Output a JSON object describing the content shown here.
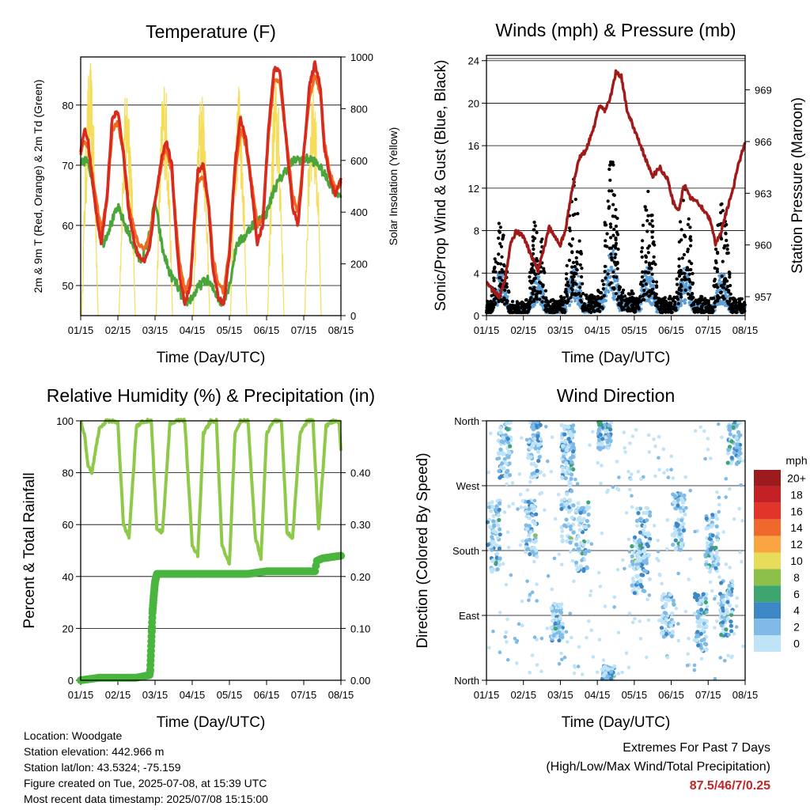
{
  "colors": {
    "temp2m": "#d82a1e",
    "temp9m": "#f26a21",
    "dewpoint": "#4aa63a",
    "insolation": "#f5dd5a",
    "wind": "#5b9fd6",
    "gust": "#000000",
    "pressure": "#a01a1a",
    "rh": "#8ec94a",
    "precip": "#4ab53e",
    "extremes": "#c0272d"
  },
  "chart_data": [
    {
      "id": "temperature",
      "type": "line",
      "title": "Temperature (F)",
      "xlabel": "Time (Day/UTC)",
      "ylabel": "2m & 9m T (Red, Orange) & 2m Td (Green)",
      "y2label": "Solar Insolation (Yellow)",
      "x_ticks": [
        "01/15",
        "02/15",
        "03/15",
        "04/15",
        "05/15",
        "06/15",
        "07/15",
        "08/15"
      ],
      "xlim": [
        0,
        7
      ],
      "ylim": [
        45,
        88
      ],
      "y_ticks": [
        50,
        60,
        70,
        80
      ],
      "y2lim": [
        0,
        1000
      ],
      "y2_ticks": [
        0,
        200,
        400,
        600,
        800,
        1000
      ],
      "grid": true,
      "series": [
        {
          "key": "temp2m",
          "color": "#d82a1e",
          "x": [
            0,
            0.1,
            0.2,
            0.3,
            0.4,
            0.55,
            0.7,
            0.85,
            1.0,
            1.15,
            1.3,
            1.45,
            1.55,
            1.7,
            1.85,
            2.0,
            2.2,
            2.3,
            2.45,
            2.55,
            2.65,
            2.8,
            2.95,
            3.05,
            3.15,
            3.3,
            3.45,
            3.55,
            3.7,
            3.85,
            4.0,
            4.15,
            4.3,
            4.45,
            4.6,
            4.75,
            4.9,
            5.05,
            5.2,
            5.35,
            5.5,
            5.7,
            5.85,
            6.0,
            6.15,
            6.3,
            6.45,
            6.55,
            6.7,
            6.85,
            7.0
          ],
          "y": [
            72,
            76,
            74,
            68,
            63,
            57,
            64,
            78,
            79,
            72,
            62,
            57,
            55,
            54,
            56,
            64,
            72,
            74,
            70,
            60,
            52,
            47,
            50,
            60,
            69,
            70,
            63,
            53,
            48,
            47,
            55,
            70,
            78,
            74,
            66,
            57,
            60,
            76,
            86,
            86,
            76,
            63,
            60,
            72,
            83,
            87,
            83,
            73,
            68,
            65,
            68
          ]
        },
        {
          "key": "temp9m",
          "color": "#f26a21",
          "x": [
            0,
            0.1,
            0.2,
            0.3,
            0.4,
            0.55,
            0.7,
            0.85,
            1.0,
            1.15,
            1.3,
            1.45,
            1.55,
            1.7,
            1.85,
            2.0,
            2.2,
            2.3,
            2.45,
            2.55,
            2.65,
            2.8,
            2.95,
            3.05,
            3.15,
            3.3,
            3.45,
            3.55,
            3.7,
            3.85,
            4.0,
            4.15,
            4.3,
            4.45,
            4.6,
            4.75,
            4.9,
            5.05,
            5.2,
            5.35,
            5.5,
            5.7,
            5.85,
            6.0,
            6.15,
            6.3,
            6.45,
            6.55,
            6.7,
            6.85,
            7.0
          ],
          "y": [
            72,
            74,
            73,
            69,
            65,
            59,
            64,
            76,
            77,
            72,
            63,
            59,
            57,
            56,
            58,
            64,
            71,
            73,
            69,
            61,
            54,
            49,
            51,
            60,
            67,
            68,
            63,
            55,
            50,
            49,
            56,
            69,
            76,
            73,
            67,
            60,
            61,
            75,
            84,
            84,
            76,
            65,
            62,
            72,
            81,
            85,
            82,
            74,
            69,
            66,
            67
          ]
        },
        {
          "key": "dewpoint",
          "color": "#4aa63a",
          "x": [
            0,
            0.15,
            0.3,
            0.45,
            0.6,
            0.8,
            1.0,
            1.2,
            1.4,
            1.6,
            1.8,
            2.0,
            2.2,
            2.4,
            2.6,
            2.8,
            3.0,
            3.2,
            3.4,
            3.6,
            3.8,
            4.0,
            4.2,
            4.4,
            4.6,
            4.8,
            5.0,
            5.2,
            5.4,
            5.6,
            5.8,
            6.0,
            6.2,
            6.4,
            6.6,
            6.8,
            7.0
          ],
          "y": [
            70,
            71,
            68,
            62,
            57,
            60,
            63,
            60,
            57,
            54,
            57,
            64,
            56,
            52,
            50,
            47,
            48,
            50,
            51,
            49,
            47,
            50,
            57,
            58,
            60,
            61,
            62,
            66,
            68,
            70,
            71,
            71,
            71,
            70,
            68,
            66,
            65
          ]
        }
      ],
      "insolation": {
        "days": [
          0.25,
          1.25,
          2.25,
          3.25,
          4.25,
          5.25,
          6.25
        ],
        "peaks": [
          990,
          930,
          950,
          900,
          960,
          940,
          960
        ]
      }
    },
    {
      "id": "winds",
      "type": "scatter",
      "title": "Winds (mph) & Pressure (mb)",
      "xlabel": "Time (Day/UTC)",
      "ylabel": "Sonic/Prop Wind & Gust (Blue, Black)",
      "y2label": "Station Pressure (Maroon)",
      "x_ticks": [
        "01/15",
        "02/15",
        "03/15",
        "04/15",
        "05/15",
        "06/15",
        "07/15",
        "08/15"
      ],
      "xlim": [
        0,
        7
      ],
      "ylim": [
        0,
        24.5
      ],
      "y_ticks": [
        0,
        4,
        8,
        12,
        16,
        20,
        24
      ],
      "y2lim": [
        955.9,
        971.0
      ],
      "y2_ticks": [
        957,
        960,
        963,
        966,
        969
      ],
      "grid": true,
      "pressure": {
        "x": [
          0,
          0.15,
          0.35,
          0.5,
          0.65,
          0.8,
          1.0,
          1.2,
          1.4,
          1.55,
          1.7,
          1.85,
          2.0,
          2.15,
          2.3,
          2.5,
          2.7,
          2.9,
          3.05,
          3.2,
          3.35,
          3.5,
          3.65,
          3.8,
          3.95,
          4.1,
          4.3,
          4.5,
          4.7,
          4.9,
          5.05,
          5.2,
          5.35,
          5.5,
          5.7,
          5.9,
          6.05,
          6.2,
          6.35,
          6.5,
          6.65,
          6.8,
          7.0
        ],
        "y": [
          957.8,
          957.4,
          957.0,
          958.0,
          960.0,
          960.8,
          960.5,
          959.4,
          958.5,
          959.8,
          961.0,
          960.5,
          960.0,
          961.0,
          963.0,
          965.0,
          965.5,
          966.8,
          968.0,
          967.8,
          968.5,
          970.0,
          969.8,
          967.8,
          967.0,
          966.2,
          965.0,
          964.0,
          964.5,
          963.8,
          962.5,
          962.0,
          963.5,
          962.8,
          962.5,
          962.0,
          961.5,
          960.0,
          960.8,
          962.0,
          963.0,
          964.5,
          966.0
        ]
      },
      "wind_envelope": {
        "days": [
          0,
          1,
          2,
          3,
          4,
          5,
          6
        ],
        "mean_peak": [
          3.5,
          3.2,
          4.0,
          5.5,
          4.0,
          3.8,
          3.5
        ],
        "gust_peak": [
          9,
          10,
          13,
          16,
          12,
          12,
          11
        ]
      }
    },
    {
      "id": "humidity",
      "type": "line",
      "title": "Relative Humidity (%) & Precipitation (in)",
      "xlabel": "Time (Day/UTC)",
      "ylabel": "Percent & Total Rainfall",
      "x_ticks": [
        "01/15",
        "02/15",
        "03/15",
        "04/15",
        "05/15",
        "06/15",
        "07/15",
        "08/15"
      ],
      "xlim": [
        0,
        7
      ],
      "ylim": [
        0,
        100
      ],
      "y_ticks": [
        0,
        20,
        40,
        60,
        80,
        100
      ],
      "y2lim": [
        0,
        0.5
      ],
      "y2_ticks": [
        "0.00",
        "0.10",
        "0.20",
        "0.30",
        "0.40"
      ],
      "grid": true,
      "series": [
        {
          "key": "rh",
          "color": "#8ec94a",
          "x": [
            0,
            0.1,
            0.2,
            0.3,
            0.5,
            0.7,
            0.85,
            1.0,
            1.15,
            1.3,
            1.5,
            1.7,
            1.9,
            2.05,
            2.2,
            2.4,
            2.6,
            2.8,
            3.0,
            3.15,
            3.3,
            3.5,
            3.65,
            3.8,
            4.0,
            4.15,
            4.3,
            4.5,
            4.7,
            4.85,
            5.0,
            5.2,
            5.4,
            5.55,
            5.7,
            5.9,
            6.1,
            6.25,
            6.4,
            6.6,
            6.8,
            6.95,
            7.0
          ],
          "y": [
            100,
            95,
            83,
            80,
            97,
            100,
            100,
            99,
            60,
            55,
            98,
            100,
            100,
            58,
            57,
            99,
            100,
            100,
            52,
            48,
            95,
            100,
            100,
            52,
            45,
            95,
            100,
            100,
            55,
            47,
            95,
            100,
            100,
            57,
            55,
            95,
            100,
            100,
            58,
            98,
            100,
            100,
            88
          ]
        },
        {
          "key": "precip",
          "color": "#4ab53e",
          "x": [
            0,
            0.5,
            1.0,
            1.5,
            1.85,
            1.87,
            1.9,
            1.93,
            1.96,
            2.0,
            2.05,
            2.5,
            3.0,
            3.5,
            4.0,
            4.5,
            5.0,
            5.5,
            6.0,
            6.3,
            6.35,
            6.5,
            7.0
          ],
          "y": [
            0,
            0.005,
            0.005,
            0.005,
            0.01,
            0.02,
            0.075,
            0.13,
            0.16,
            0.19,
            0.205,
            0.205,
            0.205,
            0.205,
            0.205,
            0.205,
            0.21,
            0.21,
            0.21,
            0.21,
            0.23,
            0.235,
            0.24
          ]
        }
      ]
    },
    {
      "id": "direction",
      "type": "scatter",
      "title": "Wind Direction",
      "xlabel": "Time (Day/UTC)",
      "ylabel": "Direction (Colored By Speed)",
      "x_ticks": [
        "01/15",
        "02/15",
        "03/15",
        "04/15",
        "05/15",
        "06/15",
        "07/15",
        "08/15"
      ],
      "xlim": [
        0,
        7
      ],
      "ylim": [
        0,
        360
      ],
      "y_ticks": [
        {
          "value": 0,
          "label": "North"
        },
        {
          "value": 90,
          "label": "East"
        },
        {
          "value": 180,
          "label": "South"
        },
        {
          "value": 270,
          "label": "West"
        },
        {
          "value": 360,
          "label": "North"
        }
      ],
      "grid": true,
      "legend": {
        "title": "mph",
        "placement": "right",
        "bins": [
          {
            "label": "20+",
            "color": "#9b1b1e"
          },
          {
            "label": "18",
            "color": "#c42127"
          },
          {
            "label": "16",
            "color": "#e3342a"
          },
          {
            "label": "14",
            "color": "#f0692c"
          },
          {
            "label": "12",
            "color": "#f9a541"
          },
          {
            "label": "10",
            "color": "#e8dd5a"
          },
          {
            "label": "8",
            "color": "#8cc04b"
          },
          {
            "label": "6",
            "color": "#3da66f"
          },
          {
            "label": "4",
            "color": "#3d87c6"
          },
          {
            "label": "2",
            "color": "#7fbbe6"
          },
          {
            "label": "0",
            "color": "#bfe3f7"
          }
        ]
      },
      "clusters": [
        {
          "day": 0.2,
          "dir": 200,
          "spread": 50
        },
        {
          "day": 0.5,
          "dir": 320,
          "spread": 40
        },
        {
          "day": 1.2,
          "dir": 210,
          "spread": 40
        },
        {
          "day": 1.3,
          "dir": 320,
          "spread": 40
        },
        {
          "day": 1.9,
          "dir": 80,
          "spread": 25
        },
        {
          "day": 2.2,
          "dir": 250,
          "spread": 60
        },
        {
          "day": 2.2,
          "dir": 330,
          "spread": 25
        },
        {
          "day": 2.6,
          "dir": 200,
          "spread": 50
        },
        {
          "day": 3.2,
          "dir": 340,
          "spread": 20
        },
        {
          "day": 3.3,
          "dir": 10,
          "spread": 10
        },
        {
          "day": 4.1,
          "dir": 160,
          "spread": 40
        },
        {
          "day": 4.25,
          "dir": 190,
          "spread": 50
        },
        {
          "day": 4.9,
          "dir": 90,
          "spread": 30
        },
        {
          "day": 5.2,
          "dir": 220,
          "spread": 40
        },
        {
          "day": 5.8,
          "dir": 80,
          "spread": 40
        },
        {
          "day": 6.1,
          "dir": 190,
          "spread": 40
        },
        {
          "day": 6.5,
          "dir": 100,
          "spread": 40
        },
        {
          "day": 6.7,
          "dir": 330,
          "spread": 30
        }
      ]
    }
  ],
  "info": {
    "location": "Location: Woodgate",
    "elevation": "Station elevation: 442.966 m",
    "latlon": "Station lat/lon: 43.5324; -75.159",
    "created": "Figure created on Tue, 2025-07-08, at 15:39 UTC",
    "recent": "Most recent data timestamp: 2025/07/08 15:15:00"
  },
  "extremes": {
    "title": "Extremes For Past 7 Days",
    "subtitle": "(High/Low/Max Wind/Total Precipitation)",
    "values": "87.5/46/7/0.25"
  }
}
